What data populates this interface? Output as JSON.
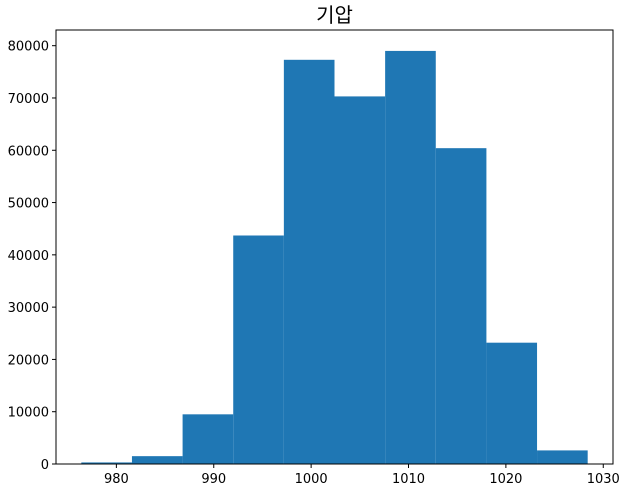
{
  "chart_data": {
    "type": "histogram",
    "title": "기압",
    "xlabel": "",
    "ylabel": "",
    "bin_edges": [
      976.4,
      981.6,
      986.8,
      992.0,
      997.2,
      1002.4,
      1007.6,
      1012.8,
      1018.0,
      1023.2,
      1028.4
    ],
    "counts": [
      300,
      1500,
      9500,
      43700,
      77300,
      70300,
      79000,
      60400,
      23200,
      2600
    ],
    "xlim": [
      973.8,
      1031.0
    ],
    "ylim": [
      0,
      83000
    ],
    "xticks": [
      980,
      990,
      1000,
      1010,
      1020,
      1030
    ],
    "yticks": [
      0,
      10000,
      20000,
      30000,
      40000,
      50000,
      60000,
      70000,
      80000
    ],
    "bar_color": "#1f77b4",
    "grid": false,
    "legend": "none"
  }
}
